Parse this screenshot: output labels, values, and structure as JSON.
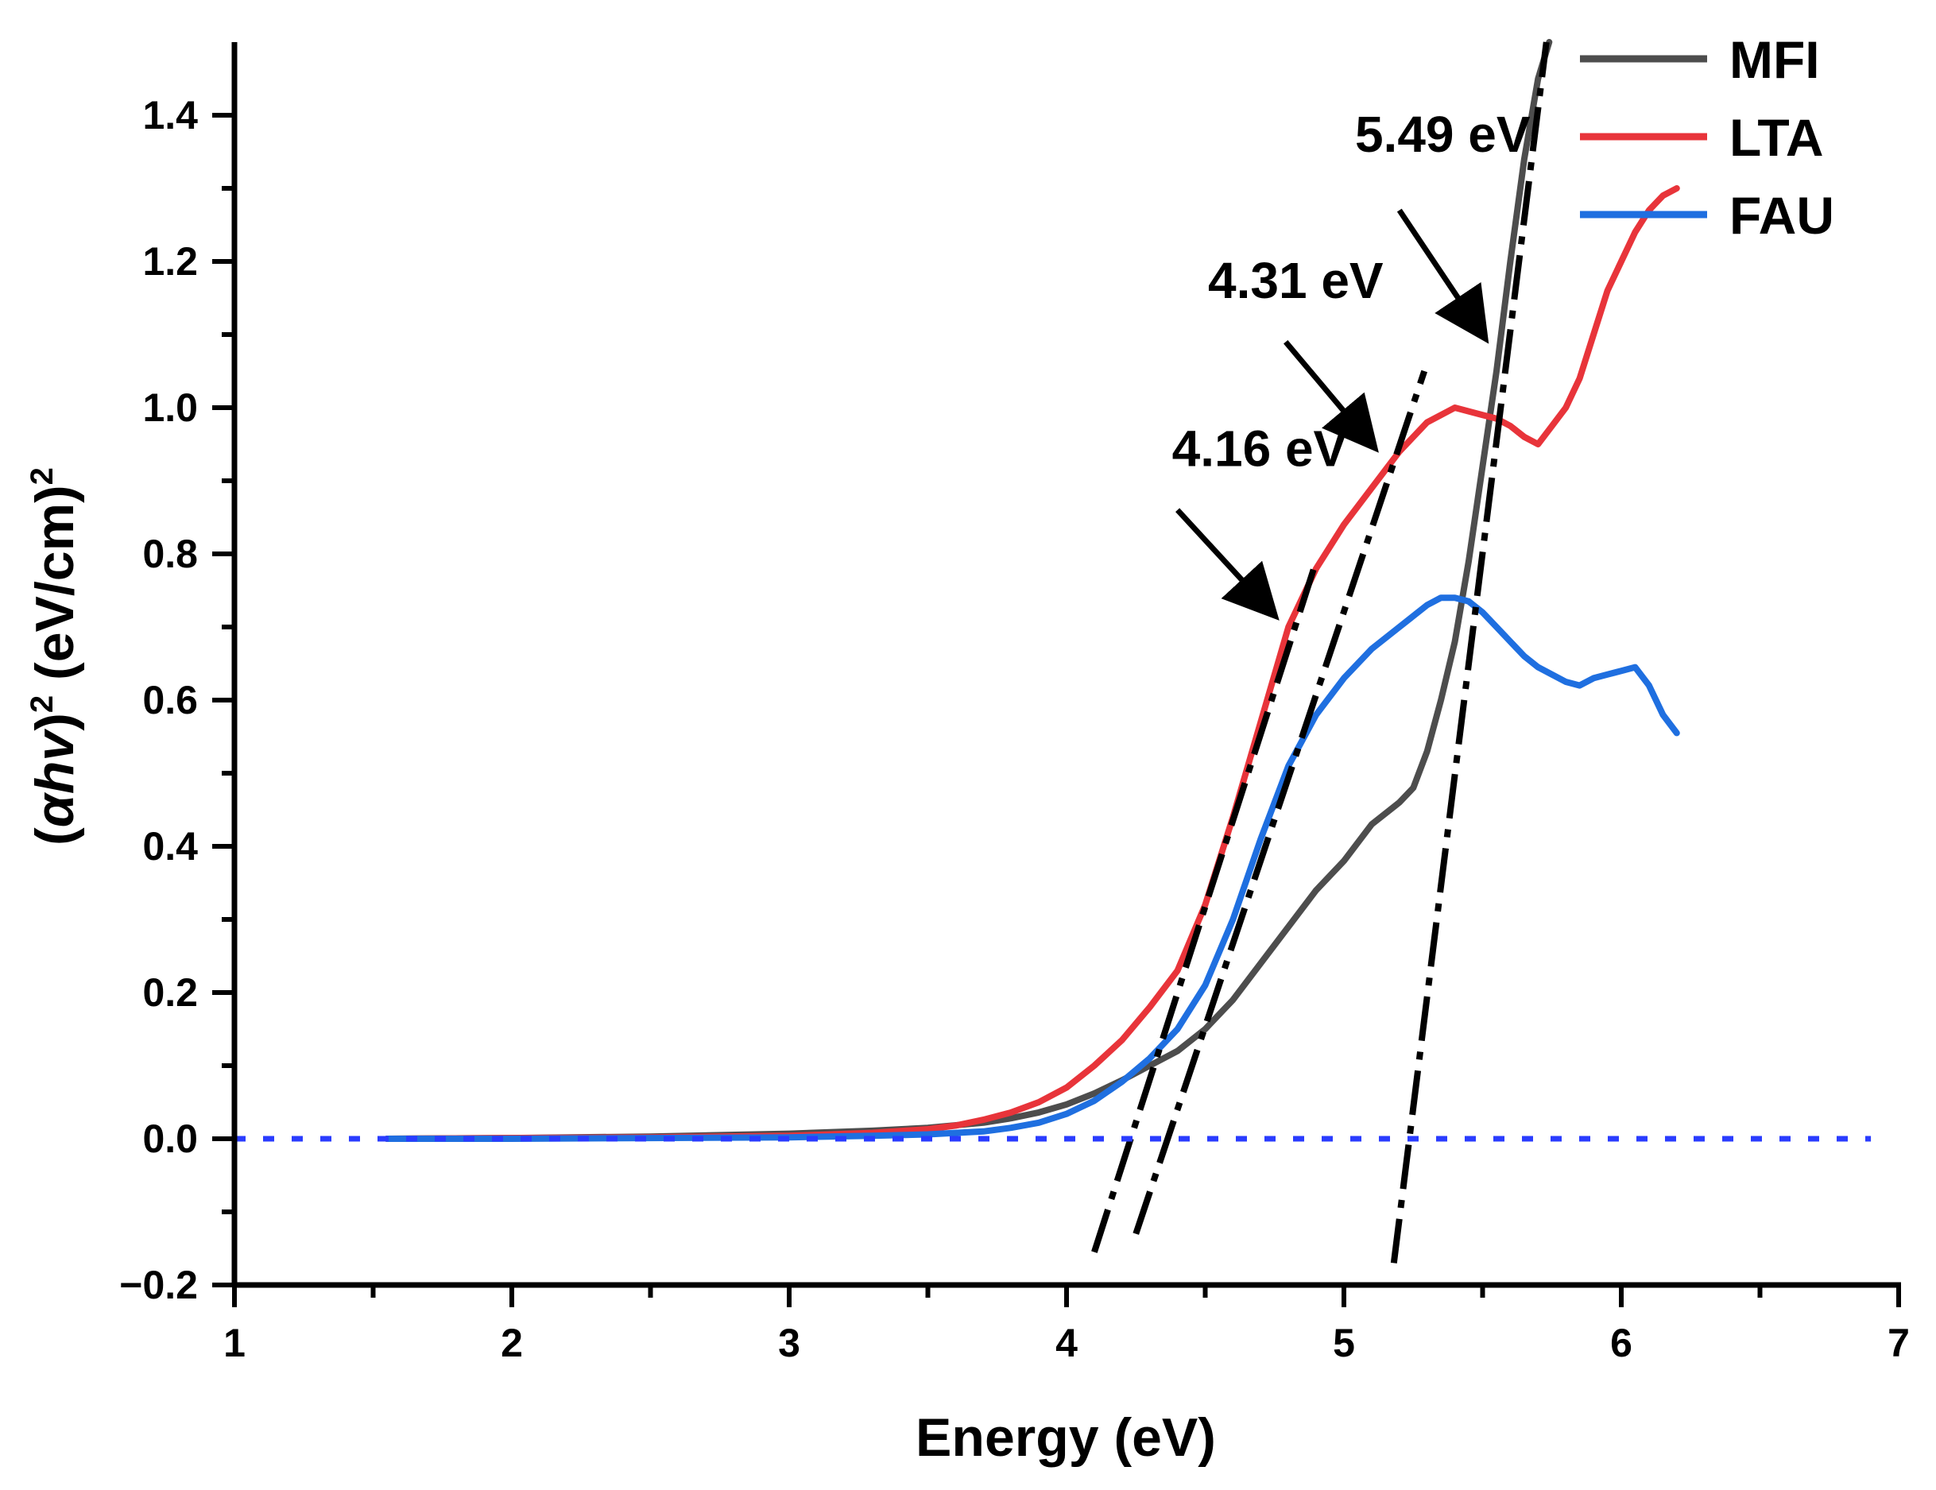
{
  "chart_data": {
    "type": "line",
    "xlabel": "Energy (eV)",
    "ylabel_parts": {
      "open": "(",
      "symbol": "αhv",
      "close": ")",
      "power": "2",
      "units": " (eV/cm)",
      "units_power": "2"
    },
    "xlim": [
      1,
      7
    ],
    "ylim": [
      -0.2,
      1.5
    ],
    "x_ticks": [
      1,
      2,
      3,
      4,
      5,
      6,
      7
    ],
    "x_tick_labels": [
      "1",
      "2",
      "3",
      "4",
      "5",
      "6",
      "7"
    ],
    "y_ticks": [
      -0.2,
      0.0,
      0.2,
      0.4,
      0.6,
      0.8,
      1.0,
      1.2,
      1.4
    ],
    "y_tick_labels": [
      "−0.2",
      "0.0",
      "0.2",
      "0.4",
      "0.6",
      "0.8",
      "1.0",
      "1.2",
      "1.4"
    ],
    "legend_position": "top-right",
    "series": [
      {
        "name": "MFI",
        "color": "#4d4d4d",
        "x": [
          1.55,
          2.0,
          2.5,
          3.0,
          3.3,
          3.5,
          3.7,
          3.8,
          3.9,
          4.0,
          4.1,
          4.2,
          4.3,
          4.4,
          4.5,
          4.6,
          4.7,
          4.8,
          4.9,
          5.0,
          5.1,
          5.2,
          5.25,
          5.3,
          5.35,
          5.4,
          5.45,
          5.5,
          5.55,
          5.6,
          5.65,
          5.7,
          5.74
        ],
        "values": [
          0.0,
          0.001,
          0.003,
          0.007,
          0.011,
          0.015,
          0.022,
          0.028,
          0.036,
          0.047,
          0.062,
          0.08,
          0.1,
          0.12,
          0.15,
          0.19,
          0.24,
          0.29,
          0.34,
          0.38,
          0.43,
          0.46,
          0.48,
          0.53,
          0.6,
          0.68,
          0.79,
          0.92,
          1.05,
          1.2,
          1.34,
          1.45,
          1.5
        ]
      },
      {
        "name": "LTA",
        "color": "#e8343a",
        "x": [
          1.55,
          2.0,
          2.5,
          3.0,
          3.3,
          3.5,
          3.6,
          3.7,
          3.8,
          3.9,
          4.0,
          4.1,
          4.2,
          4.3,
          4.4,
          4.5,
          4.6,
          4.7,
          4.8,
          4.9,
          5.0,
          5.1,
          5.2,
          5.3,
          5.4,
          5.45,
          5.5,
          5.55,
          5.6,
          5.65,
          5.7,
          5.75,
          5.8,
          5.85,
          5.9,
          5.95,
          6.0,
          6.05,
          6.1,
          6.15,
          6.2
        ],
        "values": [
          0.0,
          0.001,
          0.002,
          0.004,
          0.008,
          0.013,
          0.018,
          0.026,
          0.036,
          0.05,
          0.07,
          0.1,
          0.135,
          0.18,
          0.23,
          0.32,
          0.44,
          0.57,
          0.7,
          0.78,
          0.84,
          0.89,
          0.94,
          0.98,
          1.0,
          0.995,
          0.99,
          0.985,
          0.975,
          0.96,
          0.95,
          0.975,
          1.0,
          1.04,
          1.1,
          1.16,
          1.2,
          1.24,
          1.27,
          1.29,
          1.3
        ]
      },
      {
        "name": "FAU",
        "color": "#1f6fe0",
        "x": [
          1.55,
          2.0,
          2.5,
          3.0,
          3.3,
          3.5,
          3.7,
          3.8,
          3.9,
          4.0,
          4.1,
          4.2,
          4.3,
          4.4,
          4.5,
          4.6,
          4.7,
          4.8,
          4.9,
          5.0,
          5.1,
          5.2,
          5.3,
          5.35,
          5.4,
          5.45,
          5.5,
          5.55,
          5.6,
          5.65,
          5.7,
          5.75,
          5.8,
          5.85,
          5.9,
          5.95,
          6.0,
          6.05,
          6.1,
          6.15,
          6.2
        ],
        "values": [
          0.0,
          0.0,
          0.001,
          0.002,
          0.004,
          0.006,
          0.01,
          0.015,
          0.022,
          0.034,
          0.052,
          0.078,
          0.11,
          0.15,
          0.21,
          0.3,
          0.41,
          0.51,
          0.58,
          0.63,
          0.67,
          0.7,
          0.73,
          0.74,
          0.74,
          0.735,
          0.72,
          0.7,
          0.68,
          0.66,
          0.645,
          0.635,
          0.625,
          0.62,
          0.63,
          0.635,
          0.64,
          0.645,
          0.62,
          0.58,
          0.555
        ]
      }
    ],
    "baseline": {
      "y": 0.0,
      "color": "#2a3cff",
      "x": [
        1.0,
        6.9
      ]
    },
    "tangent_lines": [
      {
        "label": "4.16 eV",
        "x": [
          4.1,
          4.9
        ],
        "y": [
          -0.155,
          0.79
        ]
      },
      {
        "label": "4.31 eV",
        "x": [
          4.25,
          5.29
        ],
        "y": [
          -0.13,
          1.05
        ]
      },
      {
        "label": "5.49 eV",
        "x": [
          5.18,
          5.73
        ],
        "y": [
          -0.17,
          1.5
        ]
      }
    ],
    "annotations": [
      {
        "text": "4.16 eV",
        "x": 4.38,
        "y": 0.92,
        "arrow_from": [
          4.4,
          0.86
        ],
        "arrow_to": [
          4.74,
          0.72
        ]
      },
      {
        "text": "4.31 eV",
        "x": 4.51,
        "y": 1.15,
        "arrow_from": [
          4.79,
          1.09
        ],
        "arrow_to": [
          5.1,
          0.95
        ]
      },
      {
        "text": "5.49 eV",
        "x": 5.04,
        "y": 1.35,
        "arrow_from": [
          5.2,
          1.27
        ],
        "arrow_to": [
          5.5,
          1.1
        ]
      }
    ]
  }
}
